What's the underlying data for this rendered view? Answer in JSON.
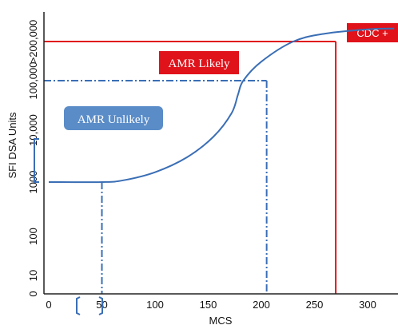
{
  "chart_data": {
    "type": "line",
    "xlabel": "MCS",
    "ylabel": "SFI DSA Units",
    "x_ticks": [
      "0",
      "50",
      "100",
      "150",
      "200",
      "250",
      "300"
    ],
    "y_ticks": [
      "0",
      "10",
      "100",
      "1000",
      "10,000",
      "100,000",
      ">200,000"
    ],
    "xlim": [
      0,
      325
    ],
    "y_scale": "categorical-log",
    "grid": false,
    "series": [
      {
        "color": "#3a6eb5",
        "points": [
          [
            0,
            1000
          ],
          [
            50,
            1000
          ],
          [
            70,
            1080
          ],
          [
            100,
            1550
          ],
          [
            130,
            3000
          ],
          [
            155,
            7500
          ],
          [
            172,
            22000
          ],
          [
            178,
            52000
          ],
          [
            183,
            100000
          ],
          [
            200,
            140000
          ],
          [
            230,
            200000
          ],
          [
            260,
            240000
          ],
          [
            300,
            265000
          ],
          [
            325,
            270000
          ]
        ]
      }
    ],
    "annotations": [
      {
        "text": "AMR Likely",
        "color": "#e0131b"
      },
      {
        "text": "AMR Unlikely",
        "color": "#5a8cc8"
      },
      {
        "text": "CDC +",
        "color": "#e0131b"
      }
    ],
    "reference_lines": [
      {
        "style": "solid",
        "color": "#e0131b",
        "x": 270,
        "y": 200000
      },
      {
        "style": "dash-dot",
        "color": "#3a6eb5",
        "x": 205,
        "y": 100000
      },
      {
        "style": "dash-dot",
        "color": "#3a6eb5",
        "x": 50,
        "y": 1000
      }
    ],
    "brackets": [
      {
        "axis": "y",
        "label": "10,000"
      },
      {
        "axis": "x",
        "label": "50"
      }
    ]
  }
}
